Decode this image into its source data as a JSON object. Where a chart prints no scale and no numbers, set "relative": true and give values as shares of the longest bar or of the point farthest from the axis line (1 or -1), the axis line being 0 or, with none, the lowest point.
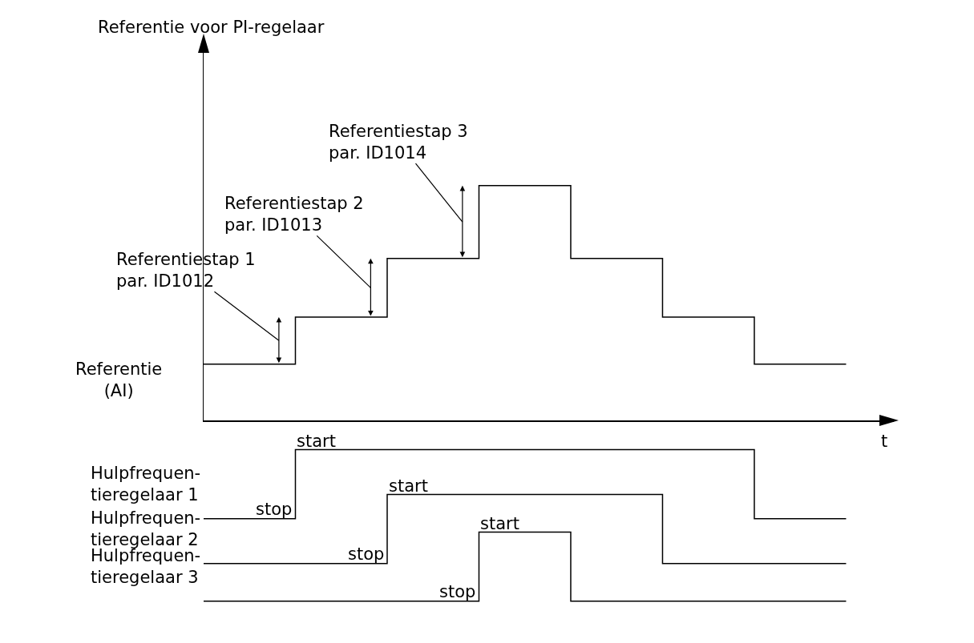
{
  "chart_data": [
    {
      "type": "step",
      "relative": true,
      "ylabel": "Referentie voor PI-regelaar",
      "xlabel": "t",
      "categories": [
        null,
        null,
        null,
        null,
        null,
        null,
        null,
        null
      ],
      "series": [
        {
          "color": "#000000",
          "values": [
            0.24,
            0.44,
            0.69,
            1,
            0.69,
            0.44,
            0.24,
            0.24
          ]
        }
      ],
      "annotations": [
        "Referentie\n(AI)",
        "Referentiestap 1\npar. ID1012",
        "Referentiestap 2\npar. ID1013",
        "Referentiestap 3\npar. ID1014"
      ]
    },
    {
      "type": "step",
      "relative": true,
      "ylabel": "Hulpfrequen-\ntieregelaar 1",
      "categories": [
        null,
        null,
        null,
        null,
        null,
        null,
        null,
        null
      ],
      "series": [
        {
          "color": "#000000",
          "values": [
            0,
            1,
            1,
            1,
            1,
            1,
            0,
            0
          ]
        }
      ],
      "annotations": [
        "stop",
        "start"
      ]
    },
    {
      "type": "step",
      "relative": true,
      "ylabel": "Hulpfrequen-\ntieregelaar 2",
      "categories": [
        null,
        null,
        null,
        null,
        null,
        null,
        null,
        null
      ],
      "series": [
        {
          "color": "#000000",
          "values": [
            0,
            0,
            1,
            1,
            1,
            0,
            0,
            0
          ]
        }
      ],
      "annotations": [
        "stop",
        "start"
      ]
    },
    {
      "type": "step",
      "relative": true,
      "ylabel": "Hulpfrequen-\ntieregelaar 3",
      "categories": [
        null,
        null,
        null,
        null,
        null,
        null,
        null,
        null
      ],
      "series": [
        {
          "color": "#000000",
          "values": [
            0,
            0,
            0,
            1,
            0,
            0,
            0,
            0
          ]
        }
      ],
      "annotations": [
        "stop",
        "start"
      ]
    }
  ]
}
